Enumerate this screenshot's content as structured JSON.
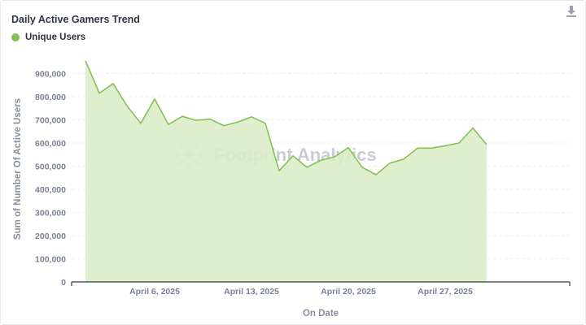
{
  "download_icon": "download-icon",
  "watermark": {
    "text": "Footprint Analytics",
    "icon": "footprint-logo-icon"
  },
  "chart_data": {
    "type": "area",
    "title": "Daily Active Gamers Trend",
    "xlabel": "On Date",
    "ylabel": "Sum of Number Of Active Users",
    "ylim": [
      0,
      1000000
    ],
    "y_ticks": [
      0,
      100000,
      200000,
      300000,
      400000,
      500000,
      600000,
      700000,
      800000,
      900000
    ],
    "y_tick_labels": [
      "0",
      "100,000",
      "200,000",
      "300,000",
      "400,000",
      "500,000",
      "600,000",
      "700,000",
      "800,000",
      "900,000"
    ],
    "x_tick_labels": [
      {
        "label": "April 6, 2025",
        "date": "2025-04-06"
      },
      {
        "label": "April 13, 2025",
        "date": "2025-04-13"
      },
      {
        "label": "April 20, 2025",
        "date": "2025-04-20"
      },
      {
        "label": "April 27, 2025",
        "date": "2025-04-27"
      }
    ],
    "x_range": [
      "2025-03-31",
      "2025-05-06"
    ],
    "grid": true,
    "legend": "top-left",
    "color": "#84c155",
    "fill_color": "#dcedc8",
    "series": [
      {
        "name": "Unique Users",
        "x": [
          "2025-04-01",
          "2025-04-02",
          "2025-04-03",
          "2025-04-04",
          "2025-04-05",
          "2025-04-06",
          "2025-04-07",
          "2025-04-08",
          "2025-04-09",
          "2025-04-10",
          "2025-04-11",
          "2025-04-12",
          "2025-04-13",
          "2025-04-14",
          "2025-04-15",
          "2025-04-16",
          "2025-04-17",
          "2025-04-18",
          "2025-04-19",
          "2025-04-20",
          "2025-04-21",
          "2025-04-22",
          "2025-04-23",
          "2025-04-24",
          "2025-04-25",
          "2025-04-26",
          "2025-04-27",
          "2025-04-28",
          "2025-04-29",
          "2025-04-30",
          "2025-05-01"
        ],
        "values": [
          955000,
          815000,
          857000,
          760000,
          685000,
          790000,
          680000,
          715000,
          698000,
          703000,
          675000,
          690000,
          713000,
          685000,
          480000,
          545000,
          495000,
          525000,
          540000,
          580000,
          495000,
          463000,
          513000,
          530000,
          578000,
          578000,
          588000,
          600000,
          665000,
          593000,
          null
        ]
      }
    ]
  }
}
